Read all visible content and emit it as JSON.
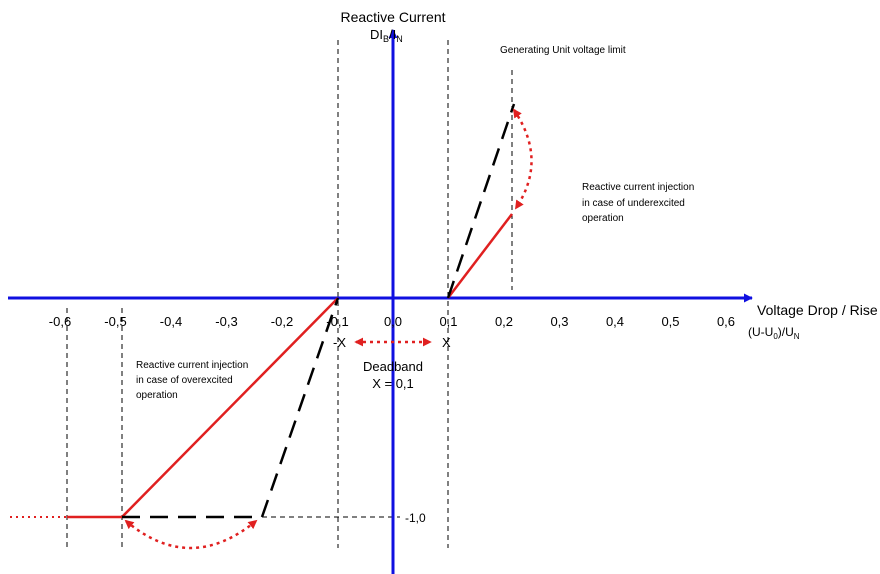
{
  "chart_data": {
    "type": "line",
    "y_axis_label": {
      "main": "Reactive Current",
      "base": "DI",
      "sub1": "B",
      "sep": "/I",
      "sub2": "N"
    },
    "x_axis_label": {
      "line1": "Voltage Drop / Rise",
      "base": "(U-U",
      "sub1": "0",
      "mid": ")/U",
      "sub2": "N"
    },
    "x_ticks": [
      "-0,6",
      "-0,5",
      "-0,4",
      "-0,3",
      "-0,2",
      "-0,1",
      "0,0",
      "0,1",
      "0,2",
      "0,3",
      "0,4",
      "0,5",
      "0,6"
    ],
    "x_tick_values": [
      -0.6,
      -0.5,
      -0.4,
      -0.3,
      -0.2,
      -0.1,
      0.0,
      0.1,
      0.2,
      0.3,
      0.4,
      0.5,
      0.6
    ],
    "y_tick_label": "-1,0",
    "y_tick_value": -1.0,
    "deadband": {
      "neg_label": "-X",
      "pos_label": "X",
      "label_line1": "Deadband",
      "label_line2": "X = 0,1",
      "x": 0.1
    },
    "annotations": {
      "gen_limit": "Generating Unit voltage limit",
      "under_line1": "Reactive current injection",
      "under_line2": "in case of underexcited",
      "under_line3": "operation",
      "over_line1": "Reactive current injection",
      "over_line2": "in case of overexcited",
      "over_line3": "operation"
    },
    "series": [
      {
        "style": "solid",
        "color": "#e02020",
        "points": [
          [
            -0.6,
            -1.0
          ],
          [
            -0.5,
            -1.0
          ],
          [
            -0.1,
            0.0
          ]
        ]
      },
      {
        "style": "solid",
        "color": "#e02020",
        "points": [
          [
            0.1,
            0.0
          ],
          [
            0.215,
            0.38
          ]
        ]
      },
      {
        "style": "dashed",
        "color": "#000000",
        "points": [
          [
            -0.5,
            -1.0
          ],
          [
            -0.24,
            -1.0
          ],
          [
            -0.1,
            0.0
          ]
        ]
      },
      {
        "style": "dashed",
        "color": "#000000",
        "points": [
          [
            0.1,
            0.0
          ],
          [
            0.22,
            0.72
          ]
        ]
      }
    ],
    "colors": {
      "axis": "#1010e0",
      "curve": "#e02020",
      "dashed": "#000000"
    }
  }
}
